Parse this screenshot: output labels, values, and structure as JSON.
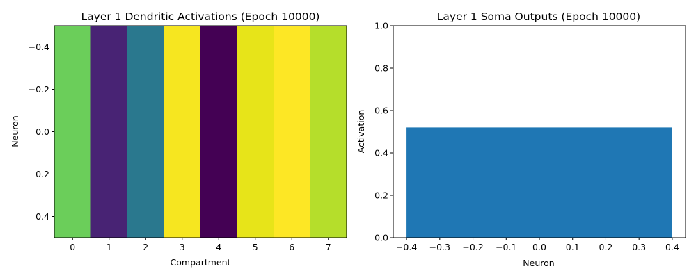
{
  "chart_data": [
    {
      "type": "heatmap",
      "title": "Layer 1 Dendritic Activations (Epoch 10000)",
      "xlabel": "Compartment",
      "ylabel": "Neuron",
      "x_categories": [
        "0",
        "1",
        "2",
        "3",
        "4",
        "5",
        "6",
        "7"
      ],
      "xlim": [
        -0.5,
        7.5
      ],
      "ylim": [
        0.5,
        -0.5
      ],
      "y_ticks": [
        "−0.4",
        "−0.2",
        "0.0",
        "0.2",
        "0.4"
      ],
      "y_tick_values": [
        -0.4,
        -0.2,
        0.0,
        0.2,
        0.4
      ],
      "colormap": "viridis",
      "cell_colors": [
        "#6bce5a",
        "#482374",
        "#2a788e",
        "#f6e620",
        "#440154",
        "#e7e419",
        "#fde725",
        "#b5de2b"
      ],
      "values": [
        [
          0.74,
          0.1,
          0.4,
          0.98,
          0.0,
          0.96,
          1.0,
          0.86
        ]
      ]
    },
    {
      "type": "bar",
      "title": "Layer 1 Soma Outputs (Epoch 10000)",
      "xlabel": "Neuron",
      "ylabel": "Activation",
      "categories": [
        0
      ],
      "values": [
        0.52
      ],
      "bar_width": 0.8,
      "bar_color": "#1f77b4",
      "xlim": [
        -0.44,
        0.44
      ],
      "ylim": [
        0.0,
        1.0
      ],
      "x_ticks": [
        "−0.4",
        "−0.3",
        "−0.2",
        "−0.1",
        "0.0",
        "0.1",
        "0.2",
        "0.3",
        "0.4"
      ],
      "x_tick_values": [
        -0.4,
        -0.3,
        -0.2,
        -0.1,
        0.0,
        0.1,
        0.2,
        0.3,
        0.4
      ],
      "y_ticks": [
        "0.0",
        "0.2",
        "0.4",
        "0.6",
        "0.8",
        "1.0"
      ],
      "y_tick_values": [
        0.0,
        0.2,
        0.4,
        0.6,
        0.8,
        1.0
      ]
    }
  ]
}
